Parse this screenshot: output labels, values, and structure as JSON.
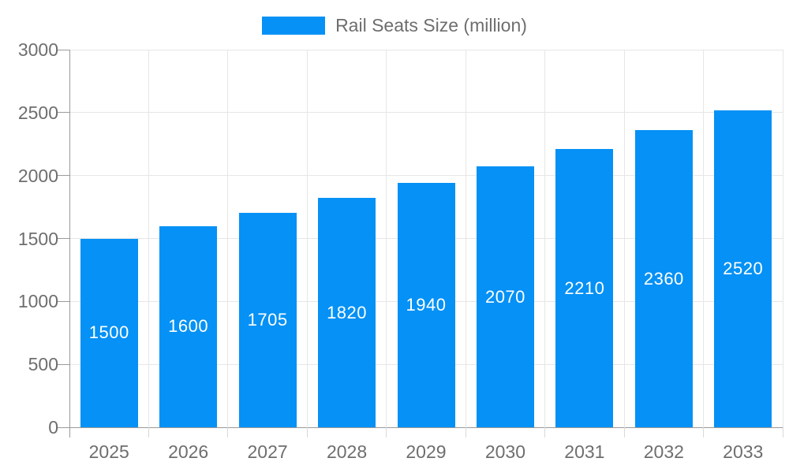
{
  "chart_data": {
    "type": "bar",
    "title": "Rail Seats Size (million)",
    "categories": [
      "2025",
      "2026",
      "2027",
      "2028",
      "2029",
      "2030",
      "2031",
      "2032",
      "2033"
    ],
    "values": [
      1500,
      1600,
      1705,
      1820,
      1940,
      2070,
      2210,
      2360,
      2520
    ],
    "series": [
      {
        "name": "Rail Seats Size (million)",
        "values": [
          1500,
          1600,
          1705,
          1820,
          1940,
          2070,
          2210,
          2360,
          2520
        ]
      }
    ],
    "xlabel": "",
    "ylabel": "",
    "ylim": [
      0,
      3000
    ],
    "yticks": [
      0,
      500,
      1000,
      1500,
      2000,
      2500,
      3000
    ],
    "grid": true,
    "legend_position": "top",
    "bar_labels_visible": true
  },
  "legend": {
    "label": "Rail Seats Size (million)"
  },
  "colors": {
    "bar": "#0591f5",
    "bar_label_text": "#ffffff",
    "legend_swatch": "#0591f5",
    "axis_text": "#6e6e6e",
    "grid_line": "#e6e6e6",
    "axis_line": "#9a9a9a",
    "background": "#ffffff"
  }
}
